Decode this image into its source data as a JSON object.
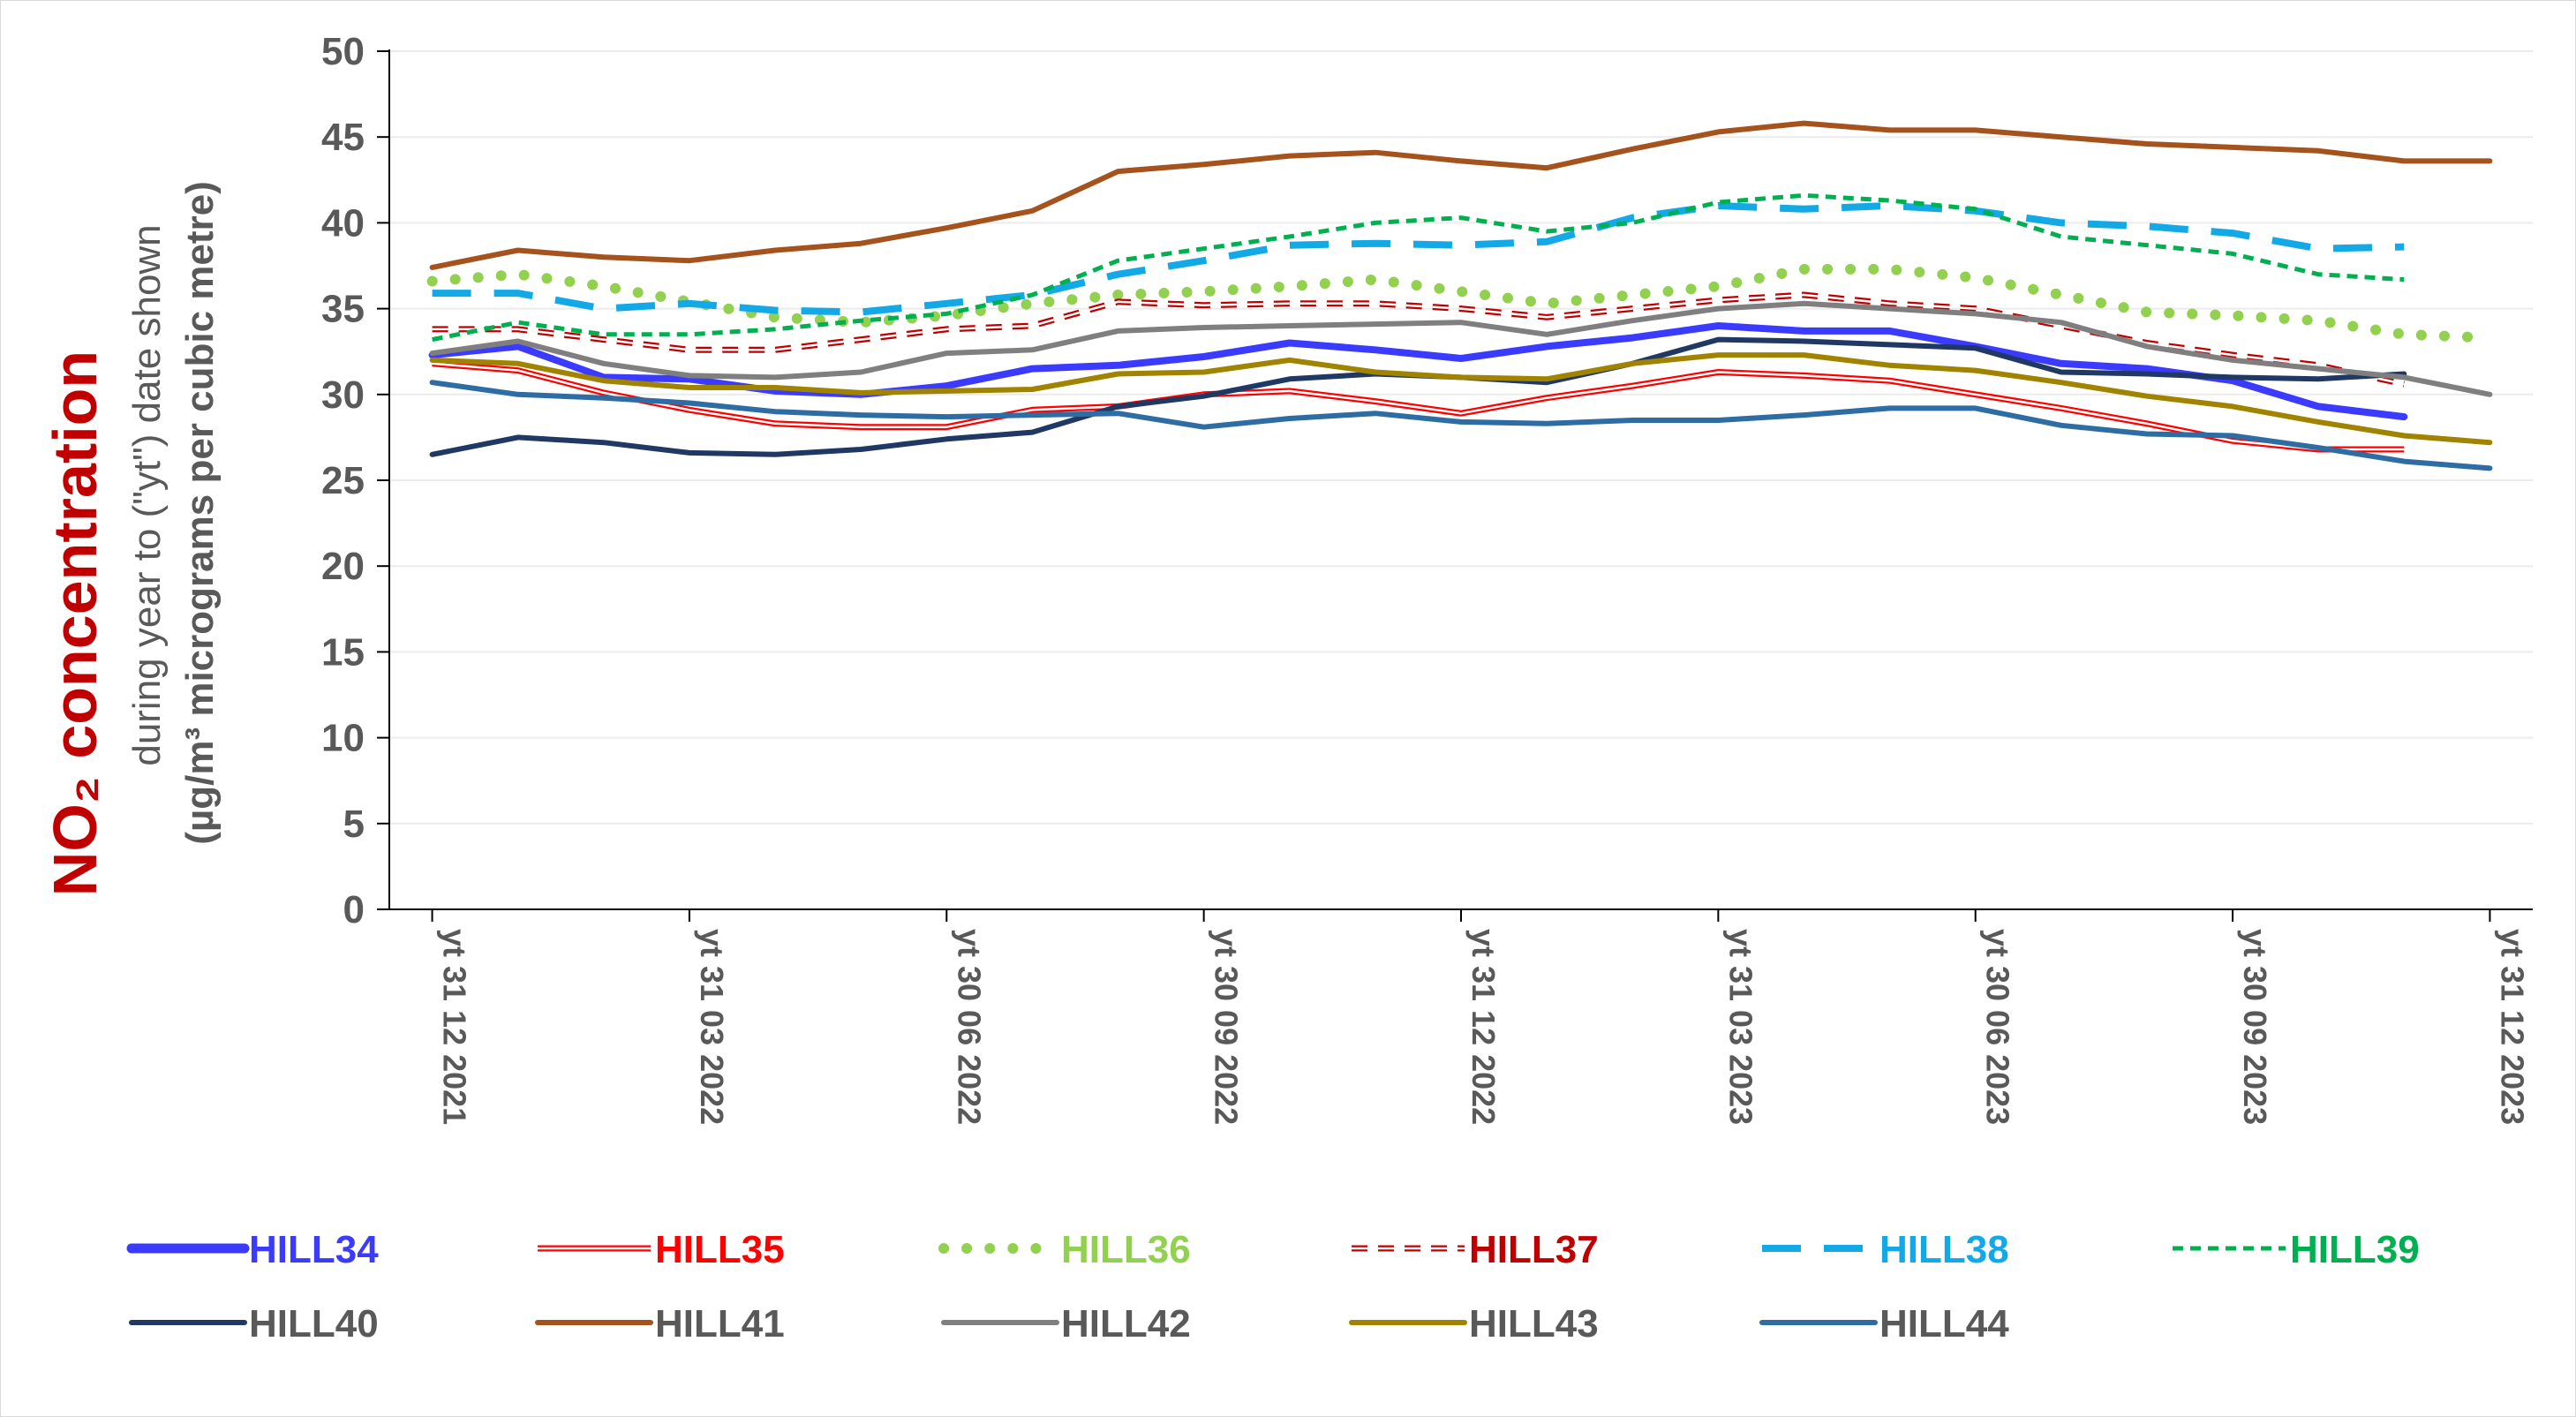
{
  "chart_data": {
    "type": "line",
    "title": "",
    "ylabel": {
      "main": "NO₂ concentration",
      "line2": "during year to (\"yt\") date shown",
      "line3": "(µg/m³ micrograms per cubic metre)"
    },
    "ylim": [
      0,
      50
    ],
    "yticks": [
      "0",
      "5",
      "10",
      "15",
      "20",
      "25",
      "30",
      "35",
      "40",
      "45",
      "50"
    ],
    "xtick_labels": [
      "yt 31 12 2021",
      "yt 31 03 2022",
      "yt 30 06 2022",
      "yt 30 09 2022",
      "yt 31 12 2022",
      "yt 31 03 2023",
      "yt 30 06 2023",
      "yt 30 09 2023",
      "yt 31 12 2023"
    ],
    "x_months": 25,
    "grid": "horizontal",
    "legend_position": "bottom",
    "series": [
      {
        "name": "HILL34",
        "color": "#3b3bff",
        "style": "solid-thick",
        "values": [
          32.3,
          32.8,
          31.0,
          30.9,
          30.2,
          30.0,
          30.5,
          31.5,
          31.7,
          32.2,
          33.0,
          32.6,
          32.1,
          32.8,
          33.3,
          34.0,
          33.7,
          33.7,
          32.8,
          31.8,
          31.5,
          30.8,
          29.3,
          28.7
        ]
      },
      {
        "name": "HILL35",
        "color": "#ff0000",
        "style": "double",
        "values": [
          31.8,
          31.4,
          30.1,
          29.1,
          28.3,
          28.1,
          28.1,
          29.1,
          29.3,
          30.0,
          30.2,
          29.6,
          28.9,
          29.8,
          30.5,
          31.3,
          31.1,
          30.8,
          30.0,
          29.2,
          28.3,
          27.3,
          26.8,
          26.8
        ]
      },
      {
        "name": "HILL36",
        "color": "#92d050",
        "style": "dotted",
        "values": [
          36.6,
          37.0,
          36.3,
          35.4,
          34.5,
          34.2,
          34.6,
          35.3,
          35.8,
          36.0,
          36.3,
          36.7,
          36.0,
          35.3,
          35.8,
          36.3,
          37.3,
          37.3,
          36.8,
          35.8,
          34.8,
          34.6,
          34.3,
          33.5,
          33.3
        ]
      },
      {
        "name": "HILL37",
        "color": "#c00000",
        "style": "double-dashed",
        "values": [
          33.8,
          33.8,
          33.2,
          32.6,
          32.6,
          33.2,
          33.8,
          34.0,
          35.4,
          35.2,
          35.3,
          35.3,
          35.0,
          34.5,
          35.0,
          35.5,
          35.8,
          35.3,
          35.0,
          34.0,
          33.0,
          32.3,
          31.7,
          30.6
        ]
      },
      {
        "name": "HILL38",
        "color": "#12a9e6",
        "style": "long-dash",
        "values": [
          35.9,
          35.9,
          35.0,
          35.3,
          34.9,
          34.8,
          35.3,
          35.8,
          37.0,
          37.8,
          38.7,
          38.8,
          38.7,
          38.9,
          40.3,
          41.0,
          40.8,
          41.0,
          40.7,
          40.0,
          39.8,
          39.4,
          38.5,
          38.6
        ]
      },
      {
        "name": "HILL39",
        "color": "#00b050",
        "style": "short-dash",
        "values": [
          33.2,
          34.2,
          33.5,
          33.5,
          33.8,
          34.3,
          34.7,
          35.8,
          37.8,
          38.5,
          39.2,
          40.0,
          40.3,
          39.5,
          40.0,
          41.2,
          41.6,
          41.3,
          40.8,
          39.2,
          38.7,
          38.2,
          37.0,
          36.7
        ]
      },
      {
        "name": "HILL40",
        "color": "#1f3864",
        "style": "solid",
        "values": [
          26.5,
          27.5,
          27.2,
          26.6,
          26.5,
          26.8,
          27.4,
          27.8,
          29.3,
          29.9,
          30.9,
          31.2,
          31.0,
          30.7,
          31.8,
          33.2,
          33.1,
          32.9,
          32.7,
          31.3,
          31.2,
          31.0,
          30.9,
          31.2
        ]
      },
      {
        "name": "HILL41",
        "color": "#a5521d",
        "style": "solid",
        "values": [
          37.4,
          38.4,
          38.0,
          37.8,
          38.4,
          38.8,
          39.7,
          40.7,
          43.0,
          43.4,
          43.9,
          44.1,
          43.6,
          43.2,
          44.3,
          45.3,
          45.8,
          45.4,
          45.4,
          45.0,
          44.6,
          44.4,
          44.2,
          43.6,
          43.6
        ]
      },
      {
        "name": "HILL42",
        "color": "#7f7f7f",
        "style": "solid",
        "values": [
          32.4,
          33.1,
          31.8,
          31.1,
          31.0,
          31.3,
          32.4,
          32.6,
          33.7,
          33.9,
          34.0,
          34.1,
          34.2,
          33.5,
          34.3,
          35.0,
          35.3,
          35.0,
          34.7,
          34.2,
          32.8,
          32.0,
          31.5,
          31.0,
          30.0
        ]
      },
      {
        "name": "HILL43",
        "color": "#a08400",
        "style": "solid",
        "values": [
          32.0,
          31.8,
          30.8,
          30.4,
          30.4,
          30.1,
          30.2,
          30.3,
          31.2,
          31.3,
          32.0,
          31.3,
          31.0,
          30.9,
          31.8,
          32.3,
          32.3,
          31.7,
          31.4,
          30.7,
          29.9,
          29.3,
          28.4,
          27.6,
          27.2
        ]
      },
      {
        "name": "HILL44",
        "color": "#2e6ca4",
        "style": "solid",
        "values": [
          30.7,
          30.0,
          29.8,
          29.5,
          29.0,
          28.8,
          28.7,
          28.8,
          28.9,
          28.1,
          28.6,
          28.9,
          28.4,
          28.3,
          28.5,
          28.5,
          28.8,
          29.2,
          29.2,
          28.2,
          27.7,
          27.6,
          26.9,
          26.1,
          25.7
        ]
      }
    ]
  }
}
